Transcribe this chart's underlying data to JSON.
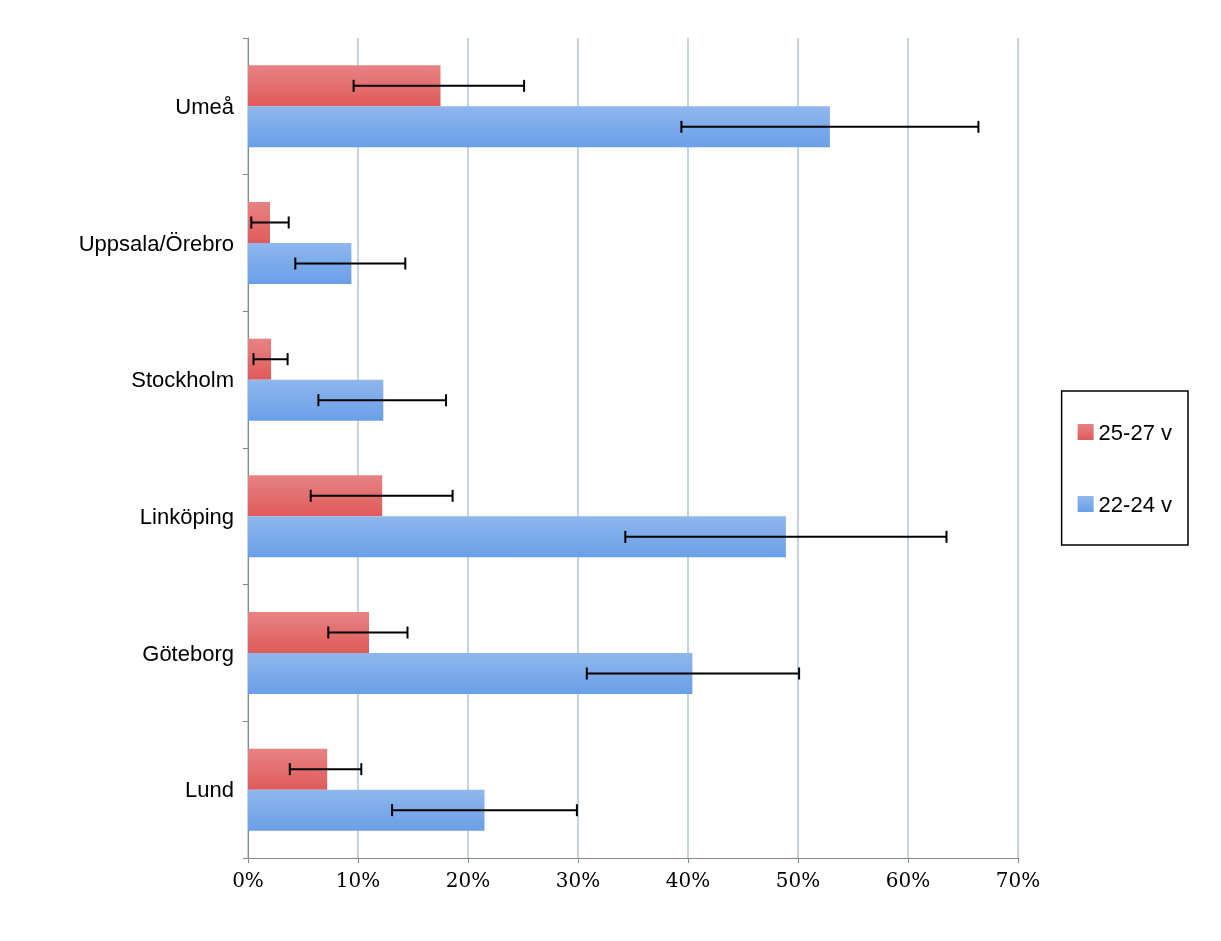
{
  "chart_data": {
    "type": "bar",
    "orientation": "horizontal",
    "categories": [
      "Umeå",
      "Uppsala/Örebro",
      "Stockholm",
      "Linköping",
      "Göteborg",
      "Lund"
    ],
    "series": [
      {
        "name": "25-27 v",
        "color": "#e05a5a",
        "values": [
          17.5,
          2.0,
          2.1,
          12.2,
          11.0,
          7.2
        ],
        "errors": [
          [
            9.6,
            25.1
          ],
          [
            0.3,
            3.7
          ],
          [
            0.5,
            3.6
          ],
          [
            5.7,
            18.6
          ],
          [
            7.3,
            14.5
          ],
          [
            3.8,
            10.3
          ]
        ]
      },
      {
        "name": "22-24 v",
        "color": "#6a9fe8",
        "values": [
          52.9,
          9.4,
          12.3,
          48.9,
          40.4,
          21.5
        ],
        "errors": [
          [
            39.4,
            66.4
          ],
          [
            4.3,
            14.3
          ],
          [
            6.4,
            18.0
          ],
          [
            34.3,
            63.5
          ],
          [
            30.8,
            50.1
          ],
          [
            13.1,
            29.9
          ]
        ]
      }
    ],
    "xlim": [
      0,
      70
    ],
    "xticks": [
      {
        "value": 0,
        "label": "0%"
      },
      {
        "value": 10,
        "label": "10%"
      },
      {
        "value": 20,
        "label": "20%"
      },
      {
        "value": 30,
        "label": "30%"
      },
      {
        "value": 40,
        "label": "40%"
      },
      {
        "value": 50,
        "label": "50%"
      },
      {
        "value": 60,
        "label": "60%"
      },
      {
        "value": 70,
        "label": "70%"
      }
    ],
    "grid": "x",
    "legend": "right"
  }
}
